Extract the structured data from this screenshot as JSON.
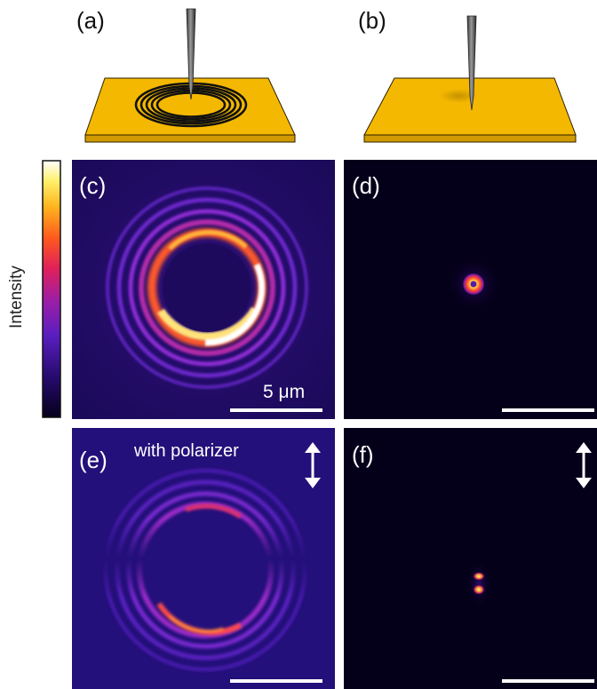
{
  "figure": {
    "panel_labels": {
      "a": "(a)",
      "b": "(b)",
      "c": "(c)",
      "d": "(d)",
      "e": "(e)",
      "f": "(f)"
    },
    "colorbar": {
      "label": "Intensity",
      "colormap": "inferno-like (black → purple → red → orange → yellow → white)"
    },
    "scale_bar": {
      "label": "5 μm"
    },
    "polarizer_caption": "with polarizer",
    "icons": {
      "polarization": "double-headed-vertical-arrow-icon",
      "tip": "probe-tip-icon"
    },
    "colors": {
      "gold_surface": "#F5B800",
      "background_dark": "#0d0020",
      "background_purple": "#2a0f70",
      "ring_purple": "#7b2fd6",
      "ring_red": "#ff2a5a",
      "ring_yellow": "#ffd84a",
      "ring_white": "#ffffff"
    }
  }
}
